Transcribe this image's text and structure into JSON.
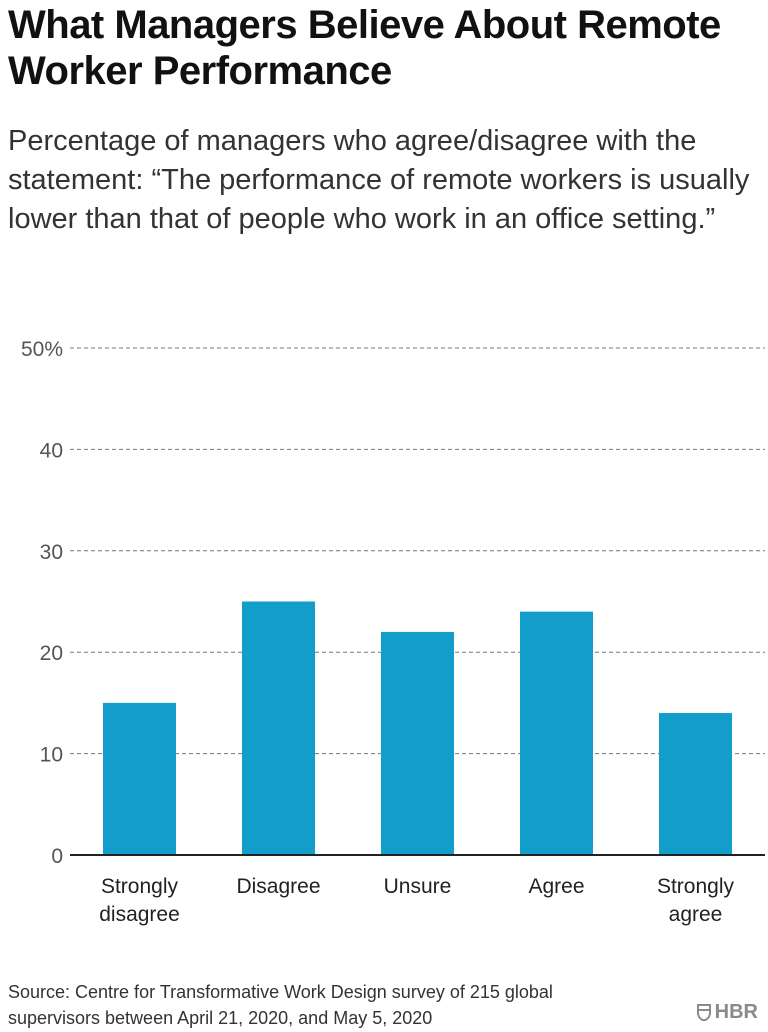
{
  "header": {
    "title": "What Managers Believe About Remote Worker Performance",
    "subtitle": "Percentage of managers who agree/disagree with the statement: “The performance of remote workers is usually lower than that of people who work in an office setting.”"
  },
  "footer": {
    "source": "Source: Centre for Transformative Work Design survey of 215 global supervisors between April 21, 2020, and May 5, 2020",
    "logo_text": "HBR",
    "logo_icon": "shield-icon"
  },
  "colors": {
    "bar": "#129dca",
    "grid": "#777777",
    "axis": "#222222",
    "tick_text": "#555555",
    "category_text": "#222222"
  },
  "chart_data": {
    "type": "bar",
    "categories": [
      [
        "Strongly",
        "disagree"
      ],
      [
        "Disagree"
      ],
      [
        "Unsure"
      ],
      [
        "Agree"
      ],
      [
        "Strongly",
        "agree"
      ]
    ],
    "values": [
      15,
      25,
      22,
      24,
      14
    ],
    "ylim": [
      0,
      50
    ],
    "yticks": [
      {
        "value": 0,
        "label": "0"
      },
      {
        "value": 10,
        "label": "10"
      },
      {
        "value": 20,
        "label": "20"
      },
      {
        "value": 30,
        "label": "30"
      },
      {
        "value": 40,
        "label": "40"
      },
      {
        "value": 50,
        "label": "50%"
      }
    ],
    "grid": true,
    "grid_style": "dashed",
    "xlabel": "",
    "ylabel": ""
  }
}
